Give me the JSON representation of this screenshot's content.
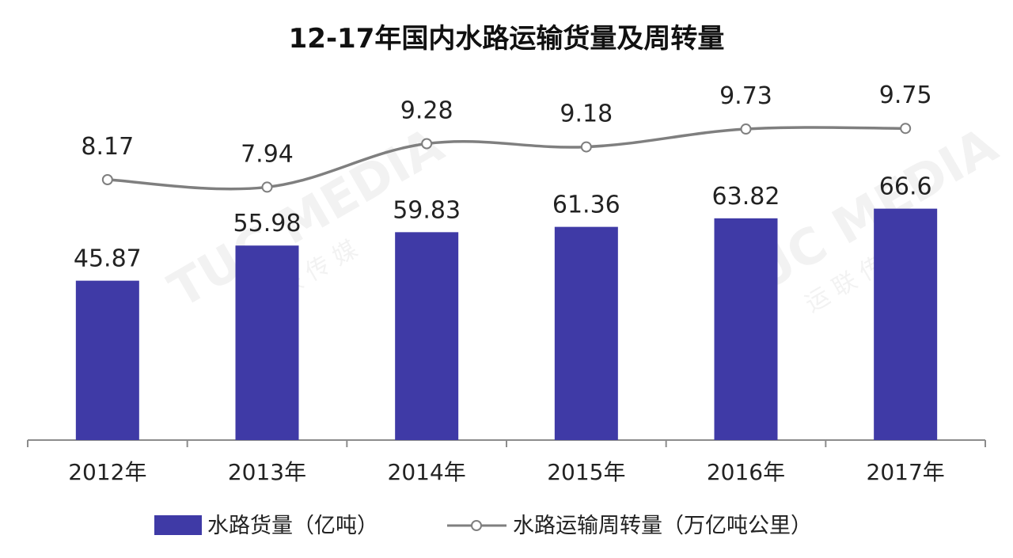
{
  "chart_data": {
    "type": "bar",
    "title": "12-17年国内水路运输货量及周转量",
    "categories": [
      "2012年",
      "2013年",
      "2014年",
      "2015年",
      "2016年",
      "2017年"
    ],
    "series": [
      {
        "name": "水路货量（亿吨）",
        "type": "bar",
        "values": [
          45.87,
          55.98,
          59.83,
          61.36,
          63.82,
          66.6
        ],
        "labels": [
          "45.87",
          "55.98",
          "59.83",
          "61.36",
          "63.82",
          "66.6"
        ]
      },
      {
        "name": "水路运输周转量（万亿吨公里）",
        "type": "line",
        "values": [
          8.17,
          7.94,
          9.28,
          9.18,
          9.73,
          9.75
        ],
        "labels": [
          "8.17",
          "7.94",
          "9.28",
          "9.18",
          "9.73",
          "9.75"
        ]
      }
    ],
    "grid": false,
    "legend": "bottom",
    "colors": {
      "bar": "#3F3AA6",
      "line": "#7F7F7F",
      "marker_fill": "#ffffff"
    }
  },
  "watermark": {
    "text": "TUC MEDIA",
    "subtext": "运 联 传 媒"
  }
}
